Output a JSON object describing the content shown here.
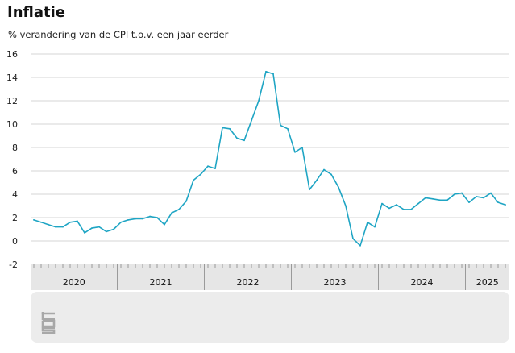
{
  "header": {
    "title": "Inflatie",
    "subtitle": "% verandering van de CPI t.o.v. een jaar eerder"
  },
  "colors": {
    "line": "#1fa5c4",
    "grid": "#d6d6d6",
    "axis_band": "#e6e6e6",
    "footer": "#ececec",
    "logo": "#a8a8a8"
  },
  "footer": {
    "logo_icon": "cbs-logo-icon"
  },
  "chart_data": {
    "type": "line",
    "title": "Inflatie",
    "subtitle": "% verandering van de CPI t.o.v. een jaar eerder",
    "xlabel": "",
    "ylabel": "",
    "ylim": [
      -2,
      16
    ],
    "yticks": [
      -2,
      0,
      2,
      4,
      6,
      8,
      10,
      12,
      14,
      16
    ],
    "grid": true,
    "legend": "none",
    "x_start": "2020-01",
    "x_end": "2025-06",
    "year_labels": [
      {
        "label": "2020",
        "start": 0,
        "end": 12
      },
      {
        "label": "2021",
        "start": 12,
        "end": 24
      },
      {
        "label": "2022",
        "start": 24,
        "end": 36
      },
      {
        "label": "2023",
        "start": 36,
        "end": 48
      },
      {
        "label": "2024",
        "start": 48,
        "end": 60
      },
      {
        "label": "2025",
        "start": 60,
        "end": 66
      }
    ],
    "series": [
      {
        "months": [
          "2020-01",
          "2020-02",
          "2020-03",
          "2020-04",
          "2020-05",
          "2020-06",
          "2020-07",
          "2020-08",
          "2020-09",
          "2020-10",
          "2020-11",
          "2020-12",
          "2021-01",
          "2021-02",
          "2021-03",
          "2021-04",
          "2021-05",
          "2021-06",
          "2021-07",
          "2021-08",
          "2021-09",
          "2021-10",
          "2021-11",
          "2021-12",
          "2022-01",
          "2022-02",
          "2022-03",
          "2022-04",
          "2022-05",
          "2022-06",
          "2022-07",
          "2022-08",
          "2022-09",
          "2022-10",
          "2022-11",
          "2022-12",
          "2023-01",
          "2023-02",
          "2023-03",
          "2023-04",
          "2023-05",
          "2023-06",
          "2023-07",
          "2023-08",
          "2023-09",
          "2023-10",
          "2023-11",
          "2023-12",
          "2024-01",
          "2024-02",
          "2024-03",
          "2024-04",
          "2024-05",
          "2024-06",
          "2024-07",
          "2024-08",
          "2024-09",
          "2024-10",
          "2024-11",
          "2024-12",
          "2025-01",
          "2025-02",
          "2025-03",
          "2025-04",
          "2025-05",
          "2025-06"
        ],
        "values": [
          1.8,
          1.6,
          1.4,
          1.2,
          1.2,
          1.6,
          1.7,
          0.7,
          1.1,
          1.2,
          0.8,
          1.0,
          1.6,
          1.8,
          1.9,
          1.9,
          2.1,
          2.0,
          1.4,
          2.4,
          2.7,
          3.4,
          5.2,
          5.7,
          6.4,
          6.2,
          9.7,
          9.6,
          8.8,
          8.6,
          10.3,
          12.0,
          14.5,
          14.3,
          9.9,
          9.6,
          7.6,
          8.0,
          4.4,
          5.2,
          6.1,
          5.7,
          4.6,
          3.0,
          0.2,
          -0.4,
          1.6,
          1.2,
          3.2,
          2.8,
          3.1,
          2.7,
          2.7,
          3.2,
          3.7,
          3.6,
          3.5,
          3.5,
          4.0,
          4.1,
          3.3,
          3.8,
          3.7,
          4.1,
          3.3,
          3.1
        ]
      }
    ]
  }
}
